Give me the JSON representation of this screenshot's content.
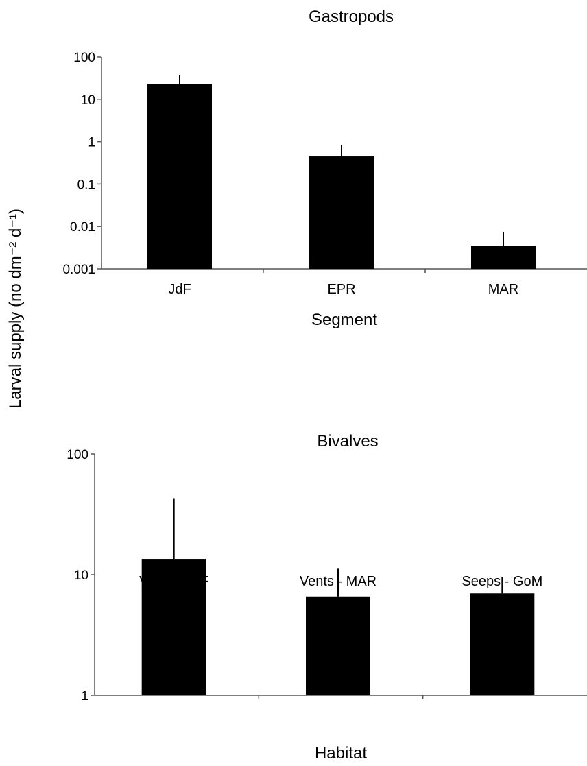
{
  "ylabel": "Larval supply (no dm⁻² d⁻¹)",
  "colors": {
    "bar": "#000000",
    "axis": "#555555"
  },
  "chart_data": [
    {
      "type": "bar",
      "title": "Gastropods",
      "xlabel": "Segment",
      "yscale": "log",
      "ylim": [
        0.001,
        100
      ],
      "yticks": [
        "0.001",
        "0.01",
        "0.1",
        "1",
        "10",
        "100"
      ],
      "categories": [
        "JdF",
        "EPR",
        "MAR"
      ],
      "values": [
        23,
        0.45,
        0.0035
      ],
      "error_upper": [
        38,
        0.85,
        0.0075
      ]
    },
    {
      "type": "bar",
      "title": "Bivalves",
      "xlabel": "Habitat",
      "yscale": "log",
      "ylim": [
        1,
        100
      ],
      "yticks": [
        "1",
        "10",
        "100"
      ],
      "categories": [
        "Vents - JdF",
        "Vents - MAR",
        "Seeps - GoM"
      ],
      "values": [
        13.5,
        6.6,
        7.0
      ],
      "error_upper": [
        43,
        11.2,
        9.5
      ]
    }
  ]
}
